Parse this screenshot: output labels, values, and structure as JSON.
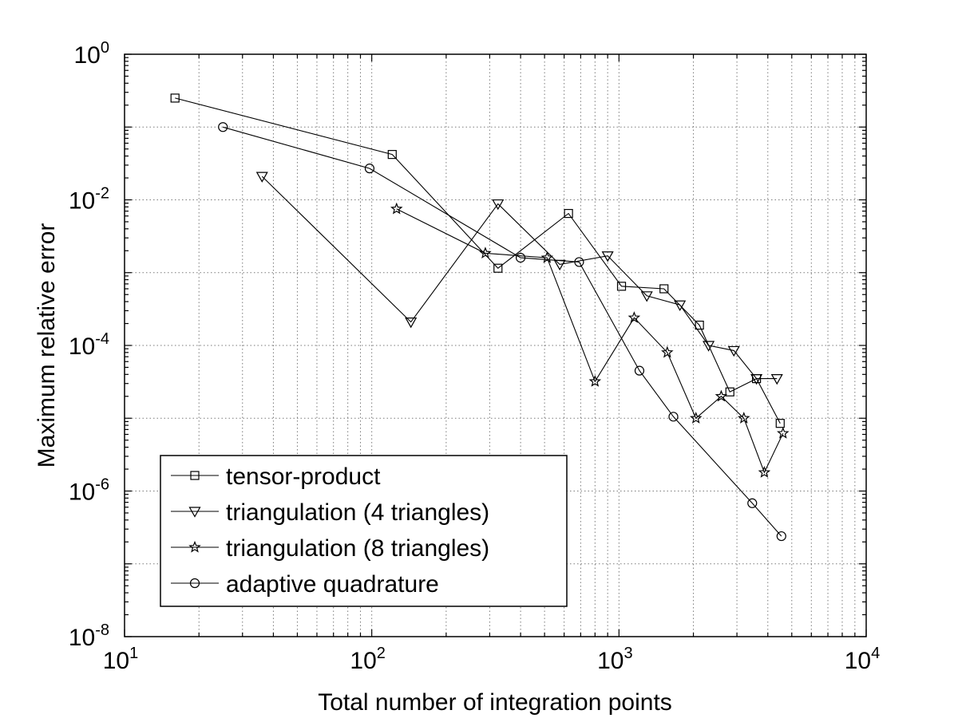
{
  "chart_data": {
    "type": "line",
    "x_scale": "log",
    "y_scale": "log",
    "xlabel": "Total number of integration points",
    "ylabel": "Maximum relative error",
    "xlim": [
      10,
      10000
    ],
    "ylim": [
      1e-08,
      1
    ],
    "grid": true,
    "legend_position": "bottom-left",
    "x_ticks": [
      {
        "value": 10,
        "base": "10",
        "exp": "1"
      },
      {
        "value": 100,
        "base": "10",
        "exp": "2"
      },
      {
        "value": 1000,
        "base": "10",
        "exp": "3"
      },
      {
        "value": 10000,
        "base": "10",
        "exp": "4"
      }
    ],
    "y_ticks": [
      {
        "value": 1,
        "base": "10",
        "exp": "0"
      },
      {
        "value": 0.01,
        "base": "10",
        "exp": "-2"
      },
      {
        "value": 0.0001,
        "base": "10",
        "exp": "-4"
      },
      {
        "value": 1e-06,
        "base": "10",
        "exp": "-6"
      },
      {
        "value": 1e-08,
        "base": "10",
        "exp": "-8"
      }
    ],
    "series": [
      {
        "name": "tensor-product",
        "marker": "square",
        "x": [
          16,
          121,
          324,
          625,
          1024,
          1521,
          2116,
          2809,
          3600,
          4489
        ],
        "y": [
          0.25,
          0.042,
          0.00115,
          0.0065,
          0.00065,
          0.0006,
          0.00019,
          2.3e-05,
          3.5e-05,
          8.5e-06
        ]
      },
      {
        "name": "triangulation (4 triangles)",
        "marker": "triangle-down",
        "x": [
          36,
          144,
          324,
          576,
          900,
          1296,
          1764,
          2304,
          2916,
          3600,
          4356
        ],
        "y": [
          0.021,
          0.00021,
          0.0088,
          0.0013,
          0.0017,
          0.00048,
          0.00036,
          0.0001,
          8.5e-05,
          3.5e-05,
          3.5e-05
        ]
      },
      {
        "name": "triangulation (8 triangles)",
        "marker": "star",
        "x": [
          126,
          288,
          512,
          800,
          1152,
          1568,
          2048,
          2592,
          3200,
          3872,
          4608
        ],
        "y": [
          0.0075,
          0.00185,
          0.0016,
          3.2e-05,
          0.00024,
          8e-05,
          1e-05,
          2e-05,
          1e-05,
          1.8e-06,
          6.2e-06
        ]
      },
      {
        "name": "adaptive quadrature",
        "marker": "circle",
        "x": [
          25,
          98,
          400,
          690,
          1210,
          1660,
          3460,
          4540
        ],
        "y": [
          0.1,
          0.027,
          0.0016,
          0.0014,
          4.5e-05,
          1.05e-05,
          6.8e-07,
          2.4e-07
        ]
      }
    ]
  }
}
